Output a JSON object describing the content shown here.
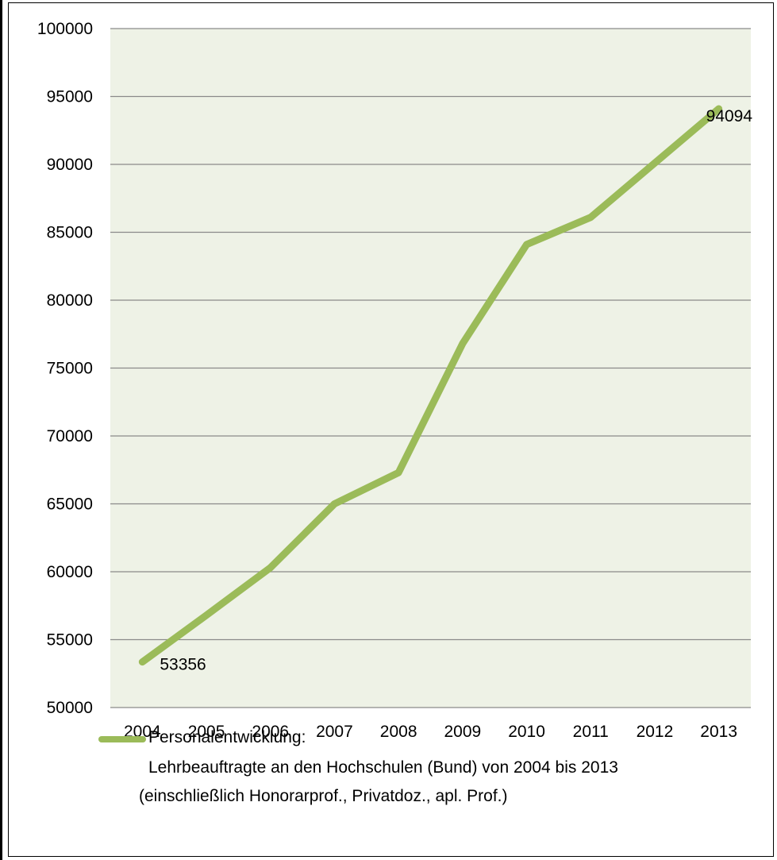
{
  "chart_data": {
    "type": "line",
    "categories": [
      "2004",
      "2005",
      "2006",
      "2007",
      "2008",
      "2009",
      "2010",
      "2011",
      "2012",
      "2013"
    ],
    "series": [
      {
        "name": "Personalentwicklung:",
        "values": [
          53356,
          56800,
          60300,
          65000,
          67300,
          76800,
          84100,
          86100,
          90100,
          94094
        ],
        "color": "#9bbb59"
      }
    ],
    "data_labels": [
      {
        "index": 0,
        "text": "53356"
      },
      {
        "index": 9,
        "text": "94094"
      }
    ],
    "yticks": [
      "50000",
      "55000",
      "60000",
      "65000",
      "70000",
      "75000",
      "80000",
      "85000",
      "90000",
      "95000",
      "100000"
    ],
    "ylim": [
      50000,
      100000
    ],
    "grid": true,
    "plot_background": "#eef2e6",
    "legend_position": "bottom",
    "legend": {
      "line1": "Personalentwicklung:",
      "line2": "Lehrbeauftragte an den Hochschulen (Bund) von 2004 bis 2013",
      "line3": "(einschließlich Honorarprof., Privatdoz., apl. Prof.)"
    }
  }
}
